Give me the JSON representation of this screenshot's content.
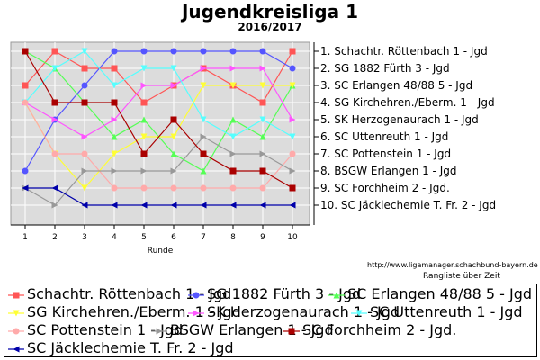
{
  "chart_data": {
    "type": "line",
    "title": "Jugendkreisliga 1",
    "subtitle": "2016/2017",
    "xlabel": "Runde",
    "footer": "Rangliste über Zeit",
    "url": "http://www.ligamanager.schachbund-bayern.de",
    "x": [
      1,
      2,
      3,
      4,
      5,
      6,
      7,
      8,
      9,
      10
    ],
    "ylim": [
      1,
      10
    ],
    "y_inverted": true,
    "y_tick_labels": [
      "1.  Schachtr. Röttenbach 1 - Jgd",
      "2.  SG 1882 Fürth 3 - Jgd",
      "3.  SC Erlangen 48/88 5 - Jgd",
      "4.  SG Kirchehren./Eberm. 1 - Jgd",
      "5.  SK Herzogenaurach 1 - Jgd",
      "6.  SC Uttenreuth 1 - Jgd",
      "7.  SC Pottenstein 1 - Jgd",
      "8.  BSGW Erlangen 1 - Jgd",
      "9.  SC Forchheim 2 - Jgd.",
      "10. SC Jäcklechemie T. Fr. 2 - Jgd"
    ],
    "grid": true,
    "legend_position": "bottom",
    "series": [
      {
        "name": "Schachtr. Röttenbach 1 - Jgd",
        "color": "#ff5555",
        "marker": "square",
        "values": [
          3,
          1,
          2,
          2,
          4,
          3,
          2,
          3,
          4,
          1
        ]
      },
      {
        "name": "SG 1882 Fürth 3 - Jgd",
        "color": "#5555ff",
        "marker": "circle",
        "values": [
          8,
          5,
          3,
          1,
          1,
          1,
          1,
          1,
          1,
          2
        ]
      },
      {
        "name": "SC Erlangen 48/88 5 - Jgd",
        "color": "#55ff55",
        "marker": "triangle-up",
        "values": [
          1,
          2,
          4,
          6,
          5,
          7,
          8,
          5,
          6,
          3
        ]
      },
      {
        "name": "SG Kirchehren./Eberm. 1 - Jgd",
        "color": "#ffff33",
        "marker": "triangle-down",
        "values": [
          4,
          7,
          9,
          7,
          6,
          6,
          3,
          3,
          3,
          3
        ]
      },
      {
        "name": "SK Herzogenaurach 1 - Jgd",
        "color": "#ff55ff",
        "marker": "triangle-right",
        "values": [
          4,
          5,
          6,
          5,
          3,
          3,
          2,
          2,
          2,
          5
        ]
      },
      {
        "name": "SC Uttenreuth 1 - Jgd",
        "color": "#55ffff",
        "marker": "triangle-down",
        "values": [
          4,
          2,
          1,
          3,
          2,
          2,
          5,
          6,
          5,
          6
        ]
      },
      {
        "name": "SC Pottenstein 1 - Jgd",
        "color": "#ffaaaa",
        "marker": "circle",
        "values": [
          4,
          7,
          7,
          9,
          9,
          9,
          9,
          9,
          9,
          7
        ]
      },
      {
        "name": "BSGW Erlangen 1 - Jgd",
        "color": "#999999",
        "marker": "triangle-right",
        "values": [
          9,
          10,
          8,
          8,
          8,
          8,
          6,
          7,
          7,
          8
        ]
      },
      {
        "name": "SC Forchheim 2 - Jgd.",
        "color": "#aa0000",
        "marker": "square",
        "values": [
          1,
          4,
          4,
          4,
          7,
          5,
          7,
          8,
          8,
          9
        ]
      },
      {
        "name": "SC Jäcklechemie T. Fr. 2 - Jgd",
        "color": "#0000aa",
        "marker": "triangle-left",
        "values": [
          9,
          9,
          10,
          10,
          10,
          10,
          10,
          10,
          10,
          10
        ]
      }
    ]
  }
}
